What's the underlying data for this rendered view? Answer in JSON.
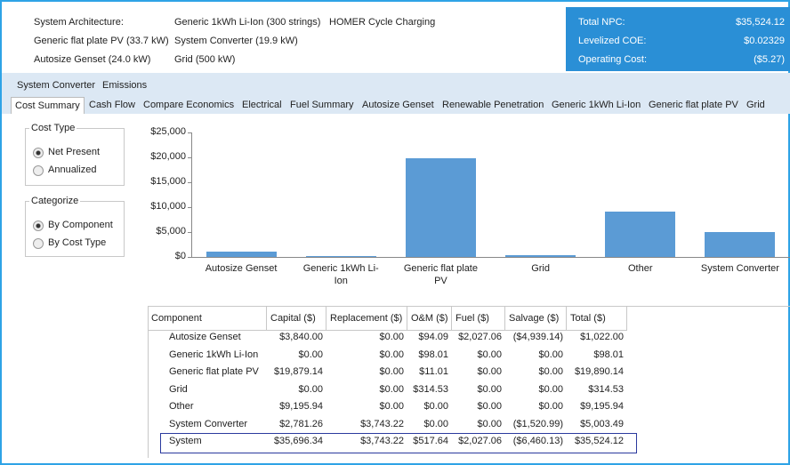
{
  "architecture": [
    [
      "System Architecture:",
      "Generic 1kWh Li-Ion (300 strings)",
      "HOMER Cycle Charging"
    ],
    [
      "Generic flat plate PV (33.7 kW)",
      "System Converter (19.9 kW)"
    ],
    [
      "Autosize Genset (24.0 kW)",
      "Grid (500 kW)"
    ]
  ],
  "summary": [
    {
      "label": "Total NPC:",
      "value": "$35,524.12"
    },
    {
      "label": "Levelized COE:",
      "value": "$0.02329"
    },
    {
      "label": "Operating Cost:",
      "value": "($5.27)"
    }
  ],
  "tabs_top": [
    "System Converter",
    "Emissions"
  ],
  "tabs": [
    "Cost Summary",
    "Cash Flow",
    "Compare Economics",
    "Electrical",
    "Fuel Summary",
    "Autosize Genset",
    "Renewable Penetration",
    "Generic 1kWh Li-Ion",
    "Generic flat plate PV",
    "Grid"
  ],
  "cost_type": {
    "label": "Cost Type",
    "options": [
      "Net Present",
      "Annualized"
    ]
  },
  "categorize": {
    "label": "Categorize",
    "options": [
      "By Component",
      "By Cost Type"
    ]
  },
  "chart_data": {
    "type": "bar",
    "categories": [
      "Autosize Genset",
      "Generic 1kWh Li-Ion",
      "Generic flat plate PV",
      "Grid",
      "Other",
      "System Converter"
    ],
    "values": [
      1022.0,
      98.01,
      19890.14,
      314.53,
      9195.94,
      5003.49
    ],
    "color": "#5b9bd5",
    "ylim": [
      0,
      25000
    ],
    "yticks": [
      {
        "value": 0,
        "label": "$0"
      },
      {
        "value": 5000,
        "label": "$5,000"
      },
      {
        "value": 10000,
        "label": "$10,000"
      },
      {
        "value": 15000,
        "label": "$15,000"
      },
      {
        "value": 20000,
        "label": "$20,000"
      },
      {
        "value": 25000,
        "label": "$25,000"
      }
    ]
  },
  "table": {
    "columns": [
      "Component",
      "Capital ($)",
      "Replacement ($)",
      "O&M ($)",
      "Fuel ($)",
      "Salvage ($)",
      "Total ($)"
    ],
    "rows": [
      [
        "Autosize Genset",
        "$3,840.00",
        "$0.00",
        "$94.09",
        "$2,027.06",
        "($4,939.14)",
        "$1,022.00"
      ],
      [
        "Generic 1kWh Li-Ion",
        "$0.00",
        "$0.00",
        "$98.01",
        "$0.00",
        "$0.00",
        "$98.01"
      ],
      [
        "Generic flat plate PV",
        "$19,879.14",
        "$0.00",
        "$11.01",
        "$0.00",
        "$0.00",
        "$19,890.14"
      ],
      [
        "Grid",
        "$0.00",
        "$0.00",
        "$314.53",
        "$0.00",
        "$0.00",
        "$314.53"
      ],
      [
        "Other",
        "$9,195.94",
        "$0.00",
        "$0.00",
        "$0.00",
        "$0.00",
        "$9,195.94"
      ],
      [
        "System Converter",
        "$2,781.26",
        "$3,743.22",
        "$0.00",
        "$0.00",
        "($1,520.99)",
        "$5,003.49"
      ],
      [
        "System",
        "$35,696.34",
        "$3,743.22",
        "$517.64",
        "$2,027.06",
        "($6,460.13)",
        "$35,524.12"
      ]
    ]
  }
}
